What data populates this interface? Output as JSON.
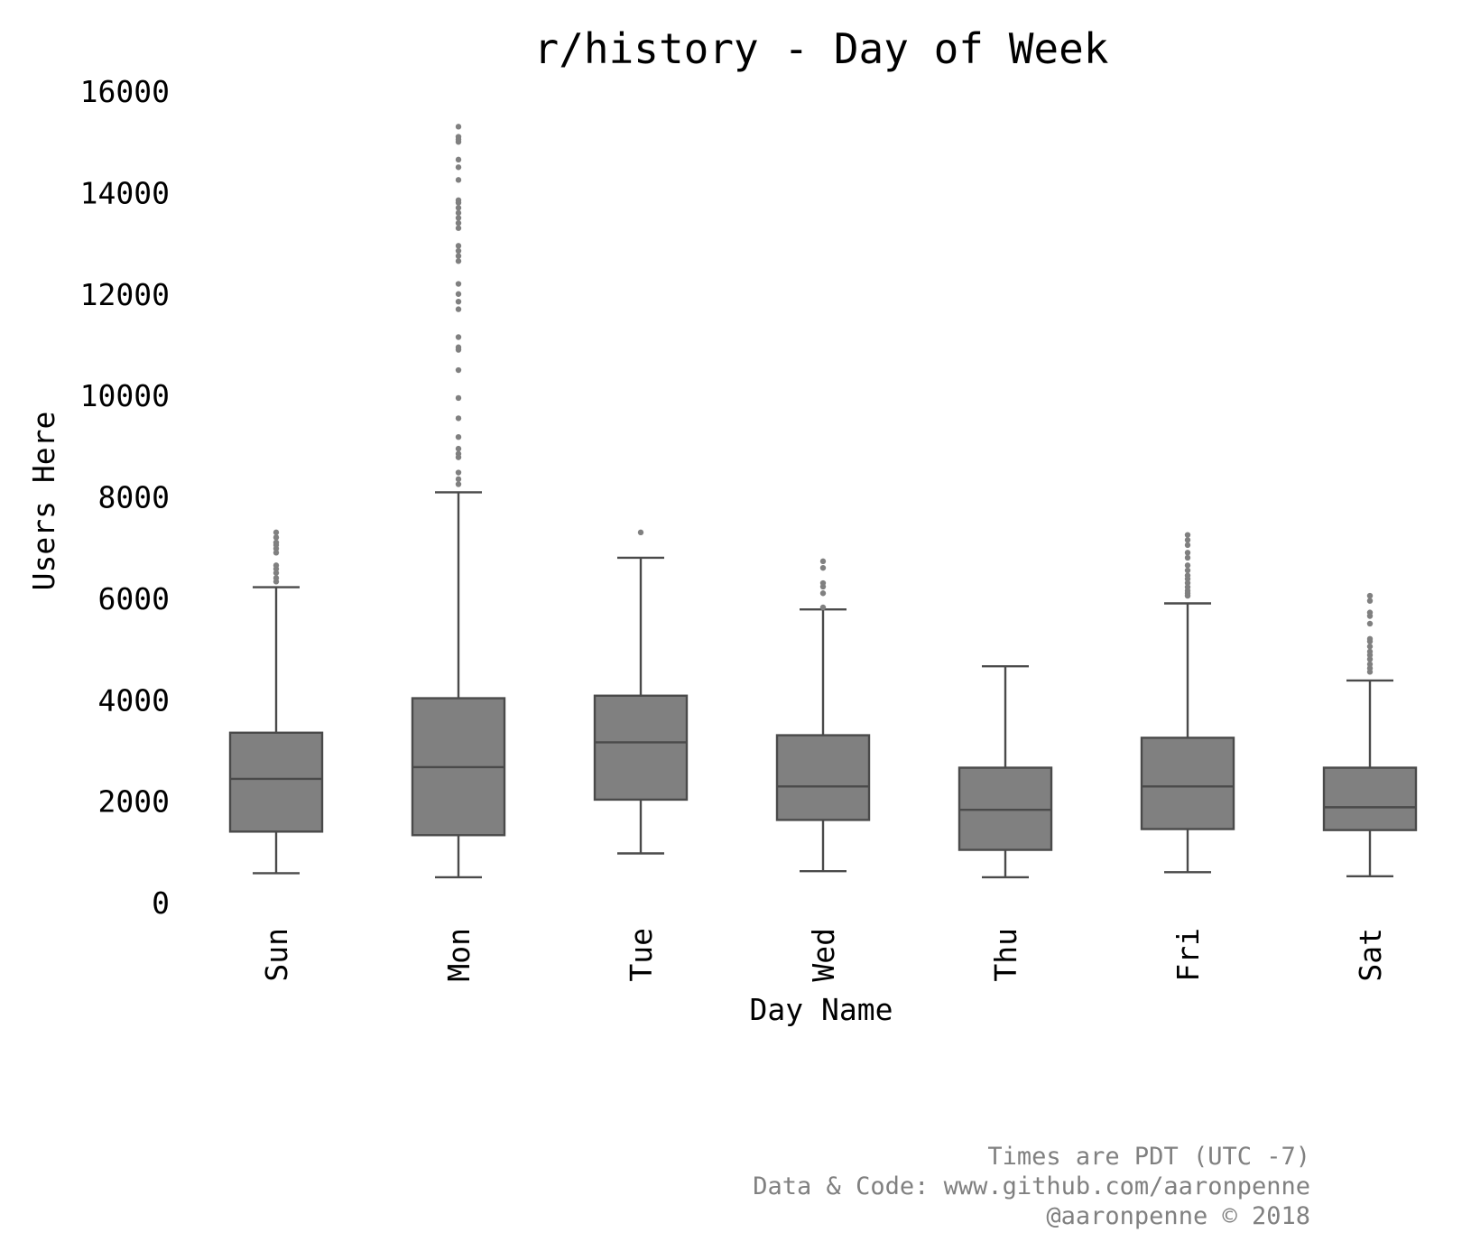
{
  "chart_data": {
    "type": "box",
    "title": "r/history - Day of Week",
    "xlabel": "Day Name",
    "ylabel": "Users Here",
    "ylim": [
      0,
      16000
    ],
    "yticks": [
      0,
      2000,
      4000,
      6000,
      8000,
      10000,
      12000,
      14000,
      16000
    ],
    "grid": false,
    "categories": [
      "Sun",
      "Mon",
      "Tue",
      "Wed",
      "Thu",
      "Fri",
      "Sat"
    ],
    "boxes": [
      {
        "category": "Sun",
        "whisker_low": 580,
        "q1": 1400,
        "median": 2440,
        "q3": 3350,
        "whisker_high": 6220,
        "outliers": [
          6330,
          6400,
          6500,
          6580,
          6650,
          6900,
          6980,
          7050,
          7100,
          7200,
          7300
        ]
      },
      {
        "category": "Mon",
        "whisker_low": 500,
        "q1": 1330,
        "median": 2670,
        "q3": 4030,
        "whisker_high": 8090,
        "outliers": [
          8250,
          8350,
          8480,
          8780,
          8850,
          8950,
          9180,
          9550,
          9950,
          10500,
          10900,
          10950,
          11150,
          11700,
          11850,
          12000,
          12200,
          12650,
          12750,
          12850,
          12950,
          13300,
          13400,
          13500,
          13600,
          13700,
          13800,
          13850,
          14250,
          14500,
          14650,
          15000,
          15050,
          15100,
          15300
        ]
      },
      {
        "category": "Tue",
        "whisker_low": 970,
        "q1": 2030,
        "median": 3160,
        "q3": 4080,
        "whisker_high": 6800,
        "outliers": [
          7300
        ]
      },
      {
        "category": "Wed",
        "whisker_low": 620,
        "q1": 1630,
        "median": 2290,
        "q3": 3300,
        "whisker_high": 5780,
        "outliers": [
          5820,
          6100,
          6230,
          6300,
          6600,
          6730
        ]
      },
      {
        "category": "Thu",
        "whisker_low": 500,
        "q1": 1040,
        "median": 1830,
        "q3": 2660,
        "whisker_high": 4660,
        "outliers": []
      },
      {
        "category": "Fri",
        "whisker_low": 600,
        "q1": 1450,
        "median": 2290,
        "q3": 3250,
        "whisker_high": 5900,
        "outliers": [
          6050,
          6100,
          6150,
          6220,
          6300,
          6380,
          6450,
          6550,
          6650,
          6800,
          6900,
          7050,
          7150,
          7250
        ]
      },
      {
        "category": "Sat",
        "whisker_low": 520,
        "q1": 1430,
        "median": 1880,
        "q3": 2660,
        "whisker_high": 4380,
        "outliers": [
          4550,
          4620,
          4700,
          4800,
          4880,
          4950,
          5050,
          5150,
          5200,
          5500,
          5650,
          5720,
          5950,
          6050
        ]
      }
    ],
    "colors": {
      "box_fill": "#808080",
      "box_edge": "#4a4a4a",
      "outlier": "#808080",
      "text": "#000000"
    }
  },
  "footer": {
    "line1": "Times are PDT (UTC -7)",
    "line2": "Data & Code: www.github.com/aaronpenne",
    "line3": "@aaronpenne © 2018"
  }
}
